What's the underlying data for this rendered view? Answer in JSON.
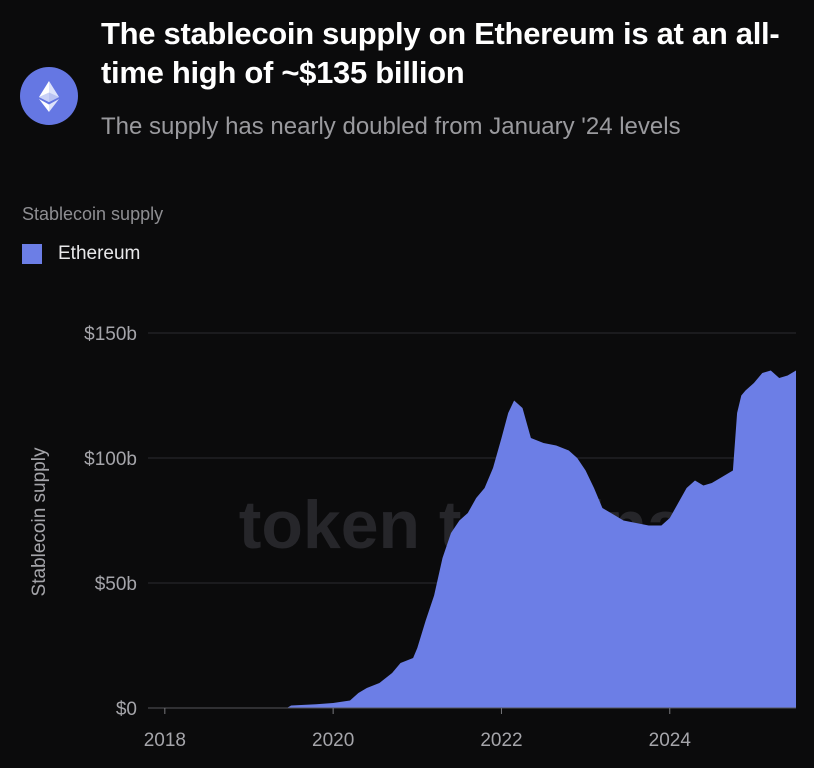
{
  "header": {
    "title": "The stablecoin supply on Ethereum is at an all-time high of ~$135 billion",
    "subtitle": "The supply has nearly doubled from January '24 levels",
    "logo_icon": "ethereum-icon"
  },
  "legend": {
    "group_label": "Stablecoin supply",
    "items": [
      {
        "label": "Ethereum",
        "color": "#6c7ee6"
      }
    ]
  },
  "watermark": "token terminal_",
  "chart_data": {
    "type": "area",
    "title": "The stablecoin supply on Ethereum is at an all-time high of ~$135 billion",
    "subtitle": "The supply has nearly doubled from January '24 levels",
    "ylabel": "Stablecoin supply",
    "xlabel": "",
    "ylim": [
      0,
      150
    ],
    "y_unit": "billion USD",
    "y_ticks": [
      0,
      50,
      100,
      150
    ],
    "y_tick_labels": [
      "$0",
      "$50b",
      "$100b",
      "$150b"
    ],
    "x_ticks": [
      2018,
      2020,
      2022,
      2024
    ],
    "x_tick_labels": [
      "2018",
      "2020",
      "2022",
      "2024"
    ],
    "xlim": [
      2017.8,
      2025.5
    ],
    "grid": true,
    "legend_position": "top-left",
    "series": [
      {
        "name": "Ethereum",
        "color": "#6c7ee6",
        "x": [
          2017.8,
          2019.45,
          2019.5,
          2019.8,
          2020.0,
          2020.2,
          2020.3,
          2020.4,
          2020.55,
          2020.7,
          2020.8,
          2020.95,
          2021.0,
          2021.1,
          2021.2,
          2021.3,
          2021.4,
          2021.5,
          2021.6,
          2021.7,
          2021.8,
          2021.9,
          2022.0,
          2022.08,
          2022.15,
          2022.25,
          2022.35,
          2022.5,
          2022.65,
          2022.8,
          2022.9,
          2023.0,
          2023.1,
          2023.2,
          2023.3,
          2023.45,
          2023.6,
          2023.75,
          2023.9,
          2024.0,
          2024.1,
          2024.2,
          2024.3,
          2024.4,
          2024.5,
          2024.6,
          2024.7,
          2024.75,
          2024.8,
          2024.85,
          2024.9,
          2025.0,
          2025.1,
          2025.2,
          2025.3,
          2025.4,
          2025.5
        ],
        "values": [
          0,
          0,
          1,
          1.5,
          2,
          3,
          6,
          8,
          10,
          14,
          18,
          20,
          24,
          35,
          45,
          60,
          70,
          75,
          78,
          84,
          88,
          96,
          108,
          118,
          123,
          120,
          108,
          106,
          105,
          103,
          100,
          95,
          88,
          80,
          78,
          75,
          74,
          73,
          73,
          76,
          82,
          88,
          91,
          89,
          90,
          92,
          94,
          95,
          118,
          125,
          127,
          130,
          134,
          135,
          132,
          133,
          135
        ]
      }
    ]
  }
}
